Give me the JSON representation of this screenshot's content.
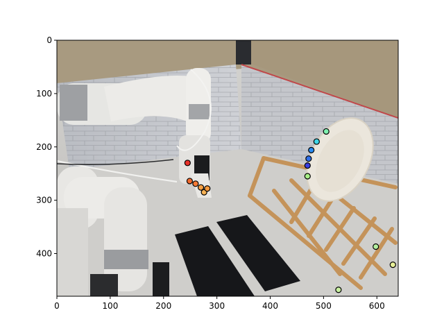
{
  "chart_data": {
    "type": "scatter",
    "title": "",
    "xlabel": "",
    "ylabel": "",
    "xlim": [
      0,
      640
    ],
    "ylim": [
      480,
      0
    ],
    "x_ticks": [
      0,
      100,
      200,
      300,
      400,
      500,
      600
    ],
    "y_ticks": [
      0,
      100,
      200,
      300,
      400
    ],
    "x_tick_labels": [
      "0",
      "100",
      "200",
      "300",
      "400",
      "500",
      "600"
    ],
    "y_tick_labels": [
      "0",
      "100",
      "200",
      "300",
      "400"
    ],
    "grid": false,
    "legend": "none",
    "background": "photo of a white robot arm gripper near a wooden dish rack holding a white plate on a grey marble floor",
    "points": [
      {
        "x": 245,
        "y": 230,
        "color": "#e8322a"
      },
      {
        "x": 249,
        "y": 264,
        "color": "#f26b2e"
      },
      {
        "x": 260,
        "y": 269,
        "color": "#f57a34"
      },
      {
        "x": 270,
        "y": 276,
        "color": "#f7a043"
      },
      {
        "x": 276,
        "y": 285,
        "color": "#f7b255"
      },
      {
        "x": 282,
        "y": 278,
        "color": "#f79a3e"
      },
      {
        "x": 505,
        "y": 171,
        "color": "#7ff0b0"
      },
      {
        "x": 487,
        "y": 190,
        "color": "#3fd6e8"
      },
      {
        "x": 477,
        "y": 206,
        "color": "#2a8bf0"
      },
      {
        "x": 472,
        "y": 222,
        "color": "#2f6fe8"
      },
      {
        "x": 470,
        "y": 235,
        "color": "#3b3fe0"
      },
      {
        "x": 470,
        "y": 255,
        "color": "#a8f088"
      },
      {
        "x": 598,
        "y": 387,
        "color": "#b4f0a0"
      },
      {
        "x": 630,
        "y": 421,
        "color": "#e8f098"
      },
      {
        "x": 528,
        "y": 468,
        "color": "#c8f0a0"
      }
    ]
  }
}
